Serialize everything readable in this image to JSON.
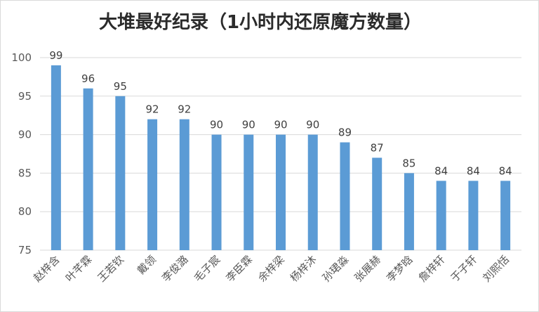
{
  "chart_data": {
    "type": "bar",
    "title": "大堆最好纪录（1小时内还原魔方数量）",
    "xlabel": "",
    "ylabel": "",
    "categories": [
      "赵梓含",
      "叶芊霖",
      "王若钦",
      "戴领",
      "李俊潞",
      "毛子宸",
      "李臣霖",
      "余梓梁",
      "杨梓沐",
      "孙珺淼",
      "张展赫",
      "李梦晗",
      "詹梓轩",
      "于子轩",
      "刘熙恬"
    ],
    "values": [
      99,
      96,
      95,
      92,
      92,
      90,
      90,
      90,
      90,
      89,
      87,
      85,
      84,
      84,
      84
    ],
    "ylim": [
      75,
      100
    ],
    "yticks": [
      75,
      80,
      85,
      90,
      95,
      100
    ],
    "grid": true,
    "legend": "none",
    "bar_color": "#5b9bd5",
    "data_labels": true
  }
}
